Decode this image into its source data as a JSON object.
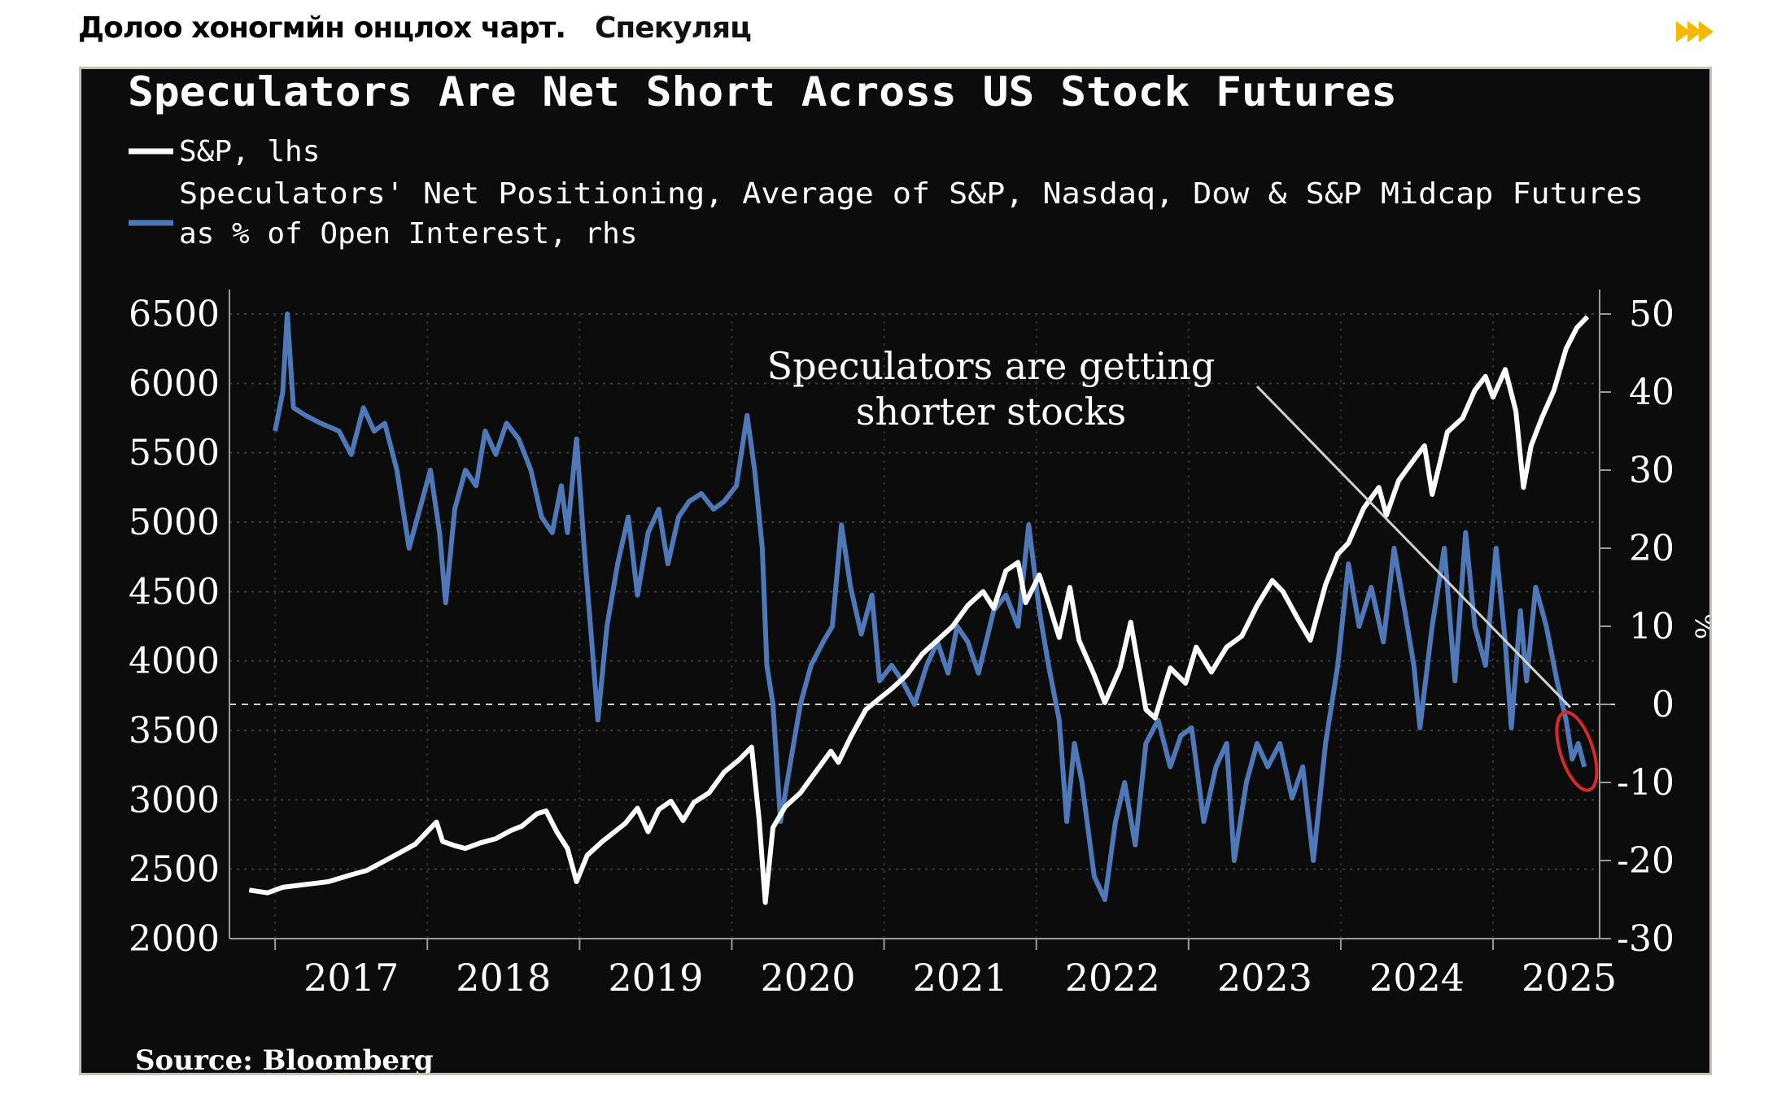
{
  "header": {
    "section_label": "Долоо хоногмйн онцлох чарт.",
    "topic_label": "Спекуляц",
    "next_icon": "double-chevron-right-icon",
    "accent_color": "#f5b800"
  },
  "chart_data": {
    "type": "line",
    "title": "Speculators Are Net Short Across US Stock Futures",
    "legend": [
      {
        "label": "S&P, lhs",
        "color": "#ffffff"
      },
      {
        "label_line1": "Speculators' Net Positioning, Average of S&P, Nasdaq, Dow & S&P Midcap Futures",
        "label_line2": "as % of Open Interest, rhs",
        "color": "#4f78b8"
      }
    ],
    "annotation": {
      "line1": "Speculators are getting",
      "line2": "shorter stocks"
    },
    "source": "Source: Bloomberg",
    "x_range": [
      2016.7,
      2025.7
    ],
    "x_ticks": [
      "2017",
      "2018",
      "2019",
      "2020",
      "2021",
      "2022",
      "2023",
      "2024",
      "2025"
    ],
    "y_left": {
      "range": [
        2000,
        6500
      ],
      "ticks": [
        "6500",
        "6000",
        "5500",
        "5000",
        "4500",
        "4000",
        "3500",
        "3000",
        "2500",
        "2000"
      ]
    },
    "y_right": {
      "range": [
        -30,
        50
      ],
      "ticks": [
        "50",
        "40",
        "30",
        "20",
        "10",
        "0",
        "-10",
        "-20",
        "-30"
      ],
      "unit_label": "%"
    },
    "series": [
      {
        "name": "S&P, lhs",
        "axis": "left",
        "color": "#ffffff",
        "points": [
          [
            2016.83,
            2350
          ],
          [
            2016.95,
            2330
          ],
          [
            2017.05,
            2370
          ],
          [
            2017.2,
            2390
          ],
          [
            2017.35,
            2410
          ],
          [
            2017.5,
            2460
          ],
          [
            2017.6,
            2490
          ],
          [
            2017.72,
            2560
          ],
          [
            2017.82,
            2620
          ],
          [
            2017.92,
            2680
          ],
          [
            2018.06,
            2840
          ],
          [
            2018.1,
            2700
          ],
          [
            2018.18,
            2670
          ],
          [
            2018.25,
            2650
          ],
          [
            2018.35,
            2690
          ],
          [
            2018.45,
            2720
          ],
          [
            2018.55,
            2780
          ],
          [
            2018.62,
            2810
          ],
          [
            2018.72,
            2900
          ],
          [
            2018.78,
            2920
          ],
          [
            2018.85,
            2770
          ],
          [
            2018.92,
            2650
          ],
          [
            2018.98,
            2410
          ],
          [
            2019.05,
            2600
          ],
          [
            2019.15,
            2700
          ],
          [
            2019.3,
            2830
          ],
          [
            2019.38,
            2940
          ],
          [
            2019.45,
            2770
          ],
          [
            2019.52,
            2930
          ],
          [
            2019.6,
            2990
          ],
          [
            2019.68,
            2850
          ],
          [
            2019.75,
            2980
          ],
          [
            2019.85,
            3050
          ],
          [
            2019.95,
            3200
          ],
          [
            2020.05,
            3290
          ],
          [
            2020.13,
            3380
          ],
          [
            2020.18,
            2850
          ],
          [
            2020.22,
            2260
          ],
          [
            2020.27,
            2800
          ],
          [
            2020.35,
            2950
          ],
          [
            2020.45,
            3050
          ],
          [
            2020.55,
            3200
          ],
          [
            2020.65,
            3350
          ],
          [
            2020.7,
            3270
          ],
          [
            2020.78,
            3450
          ],
          [
            2020.88,
            3650
          ],
          [
            2020.97,
            3730
          ],
          [
            2021.05,
            3800
          ],
          [
            2021.15,
            3900
          ],
          [
            2021.25,
            4050
          ],
          [
            2021.35,
            4150
          ],
          [
            2021.45,
            4250
          ],
          [
            2021.55,
            4400
          ],
          [
            2021.65,
            4500
          ],
          [
            2021.72,
            4380
          ],
          [
            2021.8,
            4650
          ],
          [
            2021.88,
            4710
          ],
          [
            2021.93,
            4420
          ],
          [
            2022.02,
            4620
          ],
          [
            2022.08,
            4420
          ],
          [
            2022.15,
            4170
          ],
          [
            2022.22,
            4530
          ],
          [
            2022.28,
            4150
          ],
          [
            2022.38,
            3900
          ],
          [
            2022.45,
            3700
          ],
          [
            2022.55,
            3950
          ],
          [
            2022.62,
            4280
          ],
          [
            2022.72,
            3650
          ],
          [
            2022.78,
            3590
          ],
          [
            2022.88,
            3950
          ],
          [
            2022.98,
            3840
          ],
          [
            2023.05,
            4100
          ],
          [
            2023.15,
            3920
          ],
          [
            2023.25,
            4100
          ],
          [
            2023.35,
            4180
          ],
          [
            2023.45,
            4400
          ],
          [
            2023.55,
            4580
          ],
          [
            2023.62,
            4500
          ],
          [
            2023.72,
            4300
          ],
          [
            2023.8,
            4150
          ],
          [
            2023.9,
            4550
          ],
          [
            2023.98,
            4770
          ],
          [
            2024.05,
            4850
          ],
          [
            2024.15,
            5100
          ],
          [
            2024.25,
            5250
          ],
          [
            2024.3,
            5050
          ],
          [
            2024.38,
            5300
          ],
          [
            2024.48,
            5450
          ],
          [
            2024.55,
            5550
          ],
          [
            2024.6,
            5200
          ],
          [
            2024.7,
            5650
          ],
          [
            2024.8,
            5750
          ],
          [
            2024.88,
            5950
          ],
          [
            2024.95,
            6050
          ],
          [
            2025.0,
            5900
          ],
          [
            2025.08,
            6100
          ],
          [
            2025.15,
            5800
          ],
          [
            2025.2,
            5250
          ],
          [
            2025.25,
            5550
          ],
          [
            2025.32,
            5750
          ],
          [
            2025.4,
            5950
          ],
          [
            2025.48,
            6250
          ],
          [
            2025.55,
            6400
          ],
          [
            2025.62,
            6480
          ]
        ]
      },
      {
        "name": "Speculators' Net Positioning, rhs",
        "axis": "right",
        "color": "#4f78b8",
        "points": [
          [
            2017.0,
            35
          ],
          [
            2017.05,
            40
          ],
          [
            2017.08,
            50
          ],
          [
            2017.12,
            38
          ],
          [
            2017.2,
            37
          ],
          [
            2017.3,
            36
          ],
          [
            2017.42,
            35
          ],
          [
            2017.5,
            32
          ],
          [
            2017.58,
            38
          ],
          [
            2017.65,
            35
          ],
          [
            2017.72,
            36
          ],
          [
            2017.8,
            30
          ],
          [
            2017.88,
            20
          ],
          [
            2017.95,
            25
          ],
          [
            2018.02,
            30
          ],
          [
            2018.08,
            22
          ],
          [
            2018.12,
            13
          ],
          [
            2018.18,
            25
          ],
          [
            2018.25,
            30
          ],
          [
            2018.32,
            28
          ],
          [
            2018.38,
            35
          ],
          [
            2018.45,
            32
          ],
          [
            2018.52,
            36
          ],
          [
            2018.6,
            34
          ],
          [
            2018.68,
            30
          ],
          [
            2018.75,
            24
          ],
          [
            2018.82,
            22
          ],
          [
            2018.88,
            28
          ],
          [
            2018.92,
            22
          ],
          [
            2018.98,
            34
          ],
          [
            2019.03,
            20
          ],
          [
            2019.08,
            8
          ],
          [
            2019.12,
            -2
          ],
          [
            2019.18,
            10
          ],
          [
            2019.25,
            18
          ],
          [
            2019.32,
            24
          ],
          [
            2019.38,
            14
          ],
          [
            2019.45,
            22
          ],
          [
            2019.52,
            25
          ],
          [
            2019.58,
            18
          ],
          [
            2019.65,
            24
          ],
          [
            2019.72,
            26
          ],
          [
            2019.8,
            27
          ],
          [
            2019.88,
            25
          ],
          [
            2019.95,
            26
          ],
          [
            2020.03,
            28
          ],
          [
            2020.1,
            37
          ],
          [
            2020.15,
            30
          ],
          [
            2020.2,
            20
          ],
          [
            2020.23,
            5
          ],
          [
            2020.27,
            0
          ],
          [
            2020.32,
            -15
          ],
          [
            2020.38,
            -8
          ],
          [
            2020.45,
            0
          ],
          [
            2020.52,
            5
          ],
          [
            2020.6,
            8
          ],
          [
            2020.66,
            10
          ],
          [
            2020.72,
            23
          ],
          [
            2020.78,
            15
          ],
          [
            2020.85,
            9
          ],
          [
            2020.92,
            14
          ],
          [
            2020.97,
            3
          ],
          [
            2021.05,
            5
          ],
          [
            2021.12,
            3
          ],
          [
            2021.2,
            0
          ],
          [
            2021.28,
            5
          ],
          [
            2021.35,
            8
          ],
          [
            2021.42,
            4
          ],
          [
            2021.48,
            10
          ],
          [
            2021.55,
            8
          ],
          [
            2021.62,
            4
          ],
          [
            2021.72,
            12
          ],
          [
            2021.8,
            14
          ],
          [
            2021.88,
            10
          ],
          [
            2021.95,
            23
          ],
          [
            2022.02,
            12
          ],
          [
            2022.08,
            5
          ],
          [
            2022.15,
            -2
          ],
          [
            2022.2,
            -15
          ],
          [
            2022.25,
            -5
          ],
          [
            2022.3,
            -10
          ],
          [
            2022.38,
            -22
          ],
          [
            2022.45,
            -25
          ],
          [
            2022.52,
            -15
          ],
          [
            2022.58,
            -10
          ],
          [
            2022.65,
            -18
          ],
          [
            2022.72,
            -5
          ],
          [
            2022.8,
            -2
          ],
          [
            2022.88,
            -8
          ],
          [
            2022.95,
            -4
          ],
          [
            2023.02,
            -3
          ],
          [
            2023.1,
            -15
          ],
          [
            2023.18,
            -8
          ],
          [
            2023.25,
            -5
          ],
          [
            2023.3,
            -20
          ],
          [
            2023.38,
            -10
          ],
          [
            2023.45,
            -5
          ],
          [
            2023.52,
            -8
          ],
          [
            2023.6,
            -5
          ],
          [
            2023.68,
            -12
          ],
          [
            2023.75,
            -8
          ],
          [
            2023.82,
            -20
          ],
          [
            2023.9,
            -5
          ],
          [
            2023.98,
            5
          ],
          [
            2024.05,
            18
          ],
          [
            2024.12,
            10
          ],
          [
            2024.2,
            15
          ],
          [
            2024.28,
            8
          ],
          [
            2024.35,
            20
          ],
          [
            2024.42,
            12
          ],
          [
            2024.48,
            5
          ],
          [
            2024.52,
            -3
          ],
          [
            2024.6,
            10
          ],
          [
            2024.68,
            20
          ],
          [
            2024.75,
            3
          ],
          [
            2024.82,
            22
          ],
          [
            2024.88,
            10
          ],
          [
            2024.95,
            5
          ],
          [
            2025.02,
            20
          ],
          [
            2025.08,
            8
          ],
          [
            2025.12,
            -3
          ],
          [
            2025.18,
            12
          ],
          [
            2025.22,
            3
          ],
          [
            2025.28,
            15
          ],
          [
            2025.35,
            10
          ],
          [
            2025.42,
            3
          ],
          [
            2025.48,
            -2
          ],
          [
            2025.52,
            -7
          ],
          [
            2025.56,
            -5
          ],
          [
            2025.6,
            -8
          ]
        ]
      }
    ],
    "zero_line_right": 0,
    "highlight": {
      "x": 2025.55,
      "y_right": -6,
      "color": "#d42a2a"
    }
  }
}
